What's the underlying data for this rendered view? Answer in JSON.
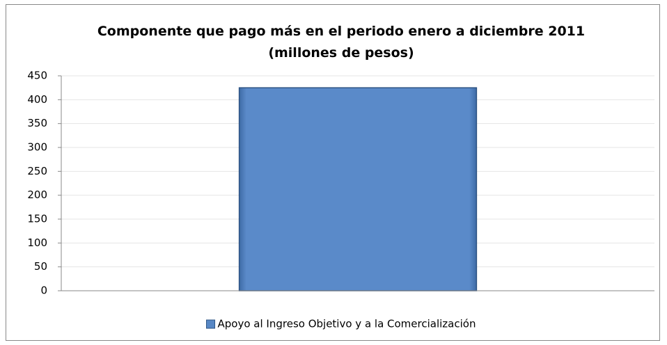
{
  "chart_data": {
    "type": "bar",
    "title": "Componente  que pago más en el periodo enero a diciembre 2011  (millones de pesos)",
    "categories": [
      null
    ],
    "series": [
      {
        "name": "Apoyo al Ingreso Objetivo y a la Comercialización",
        "color": "#5787c5",
        "values": [
          425
        ]
      }
    ],
    "ylim": [
      0,
      450
    ],
    "yticks": [
      0,
      50,
      100,
      150,
      200,
      250,
      300,
      350,
      400,
      450
    ],
    "grid": true,
    "legend": "bottom"
  }
}
